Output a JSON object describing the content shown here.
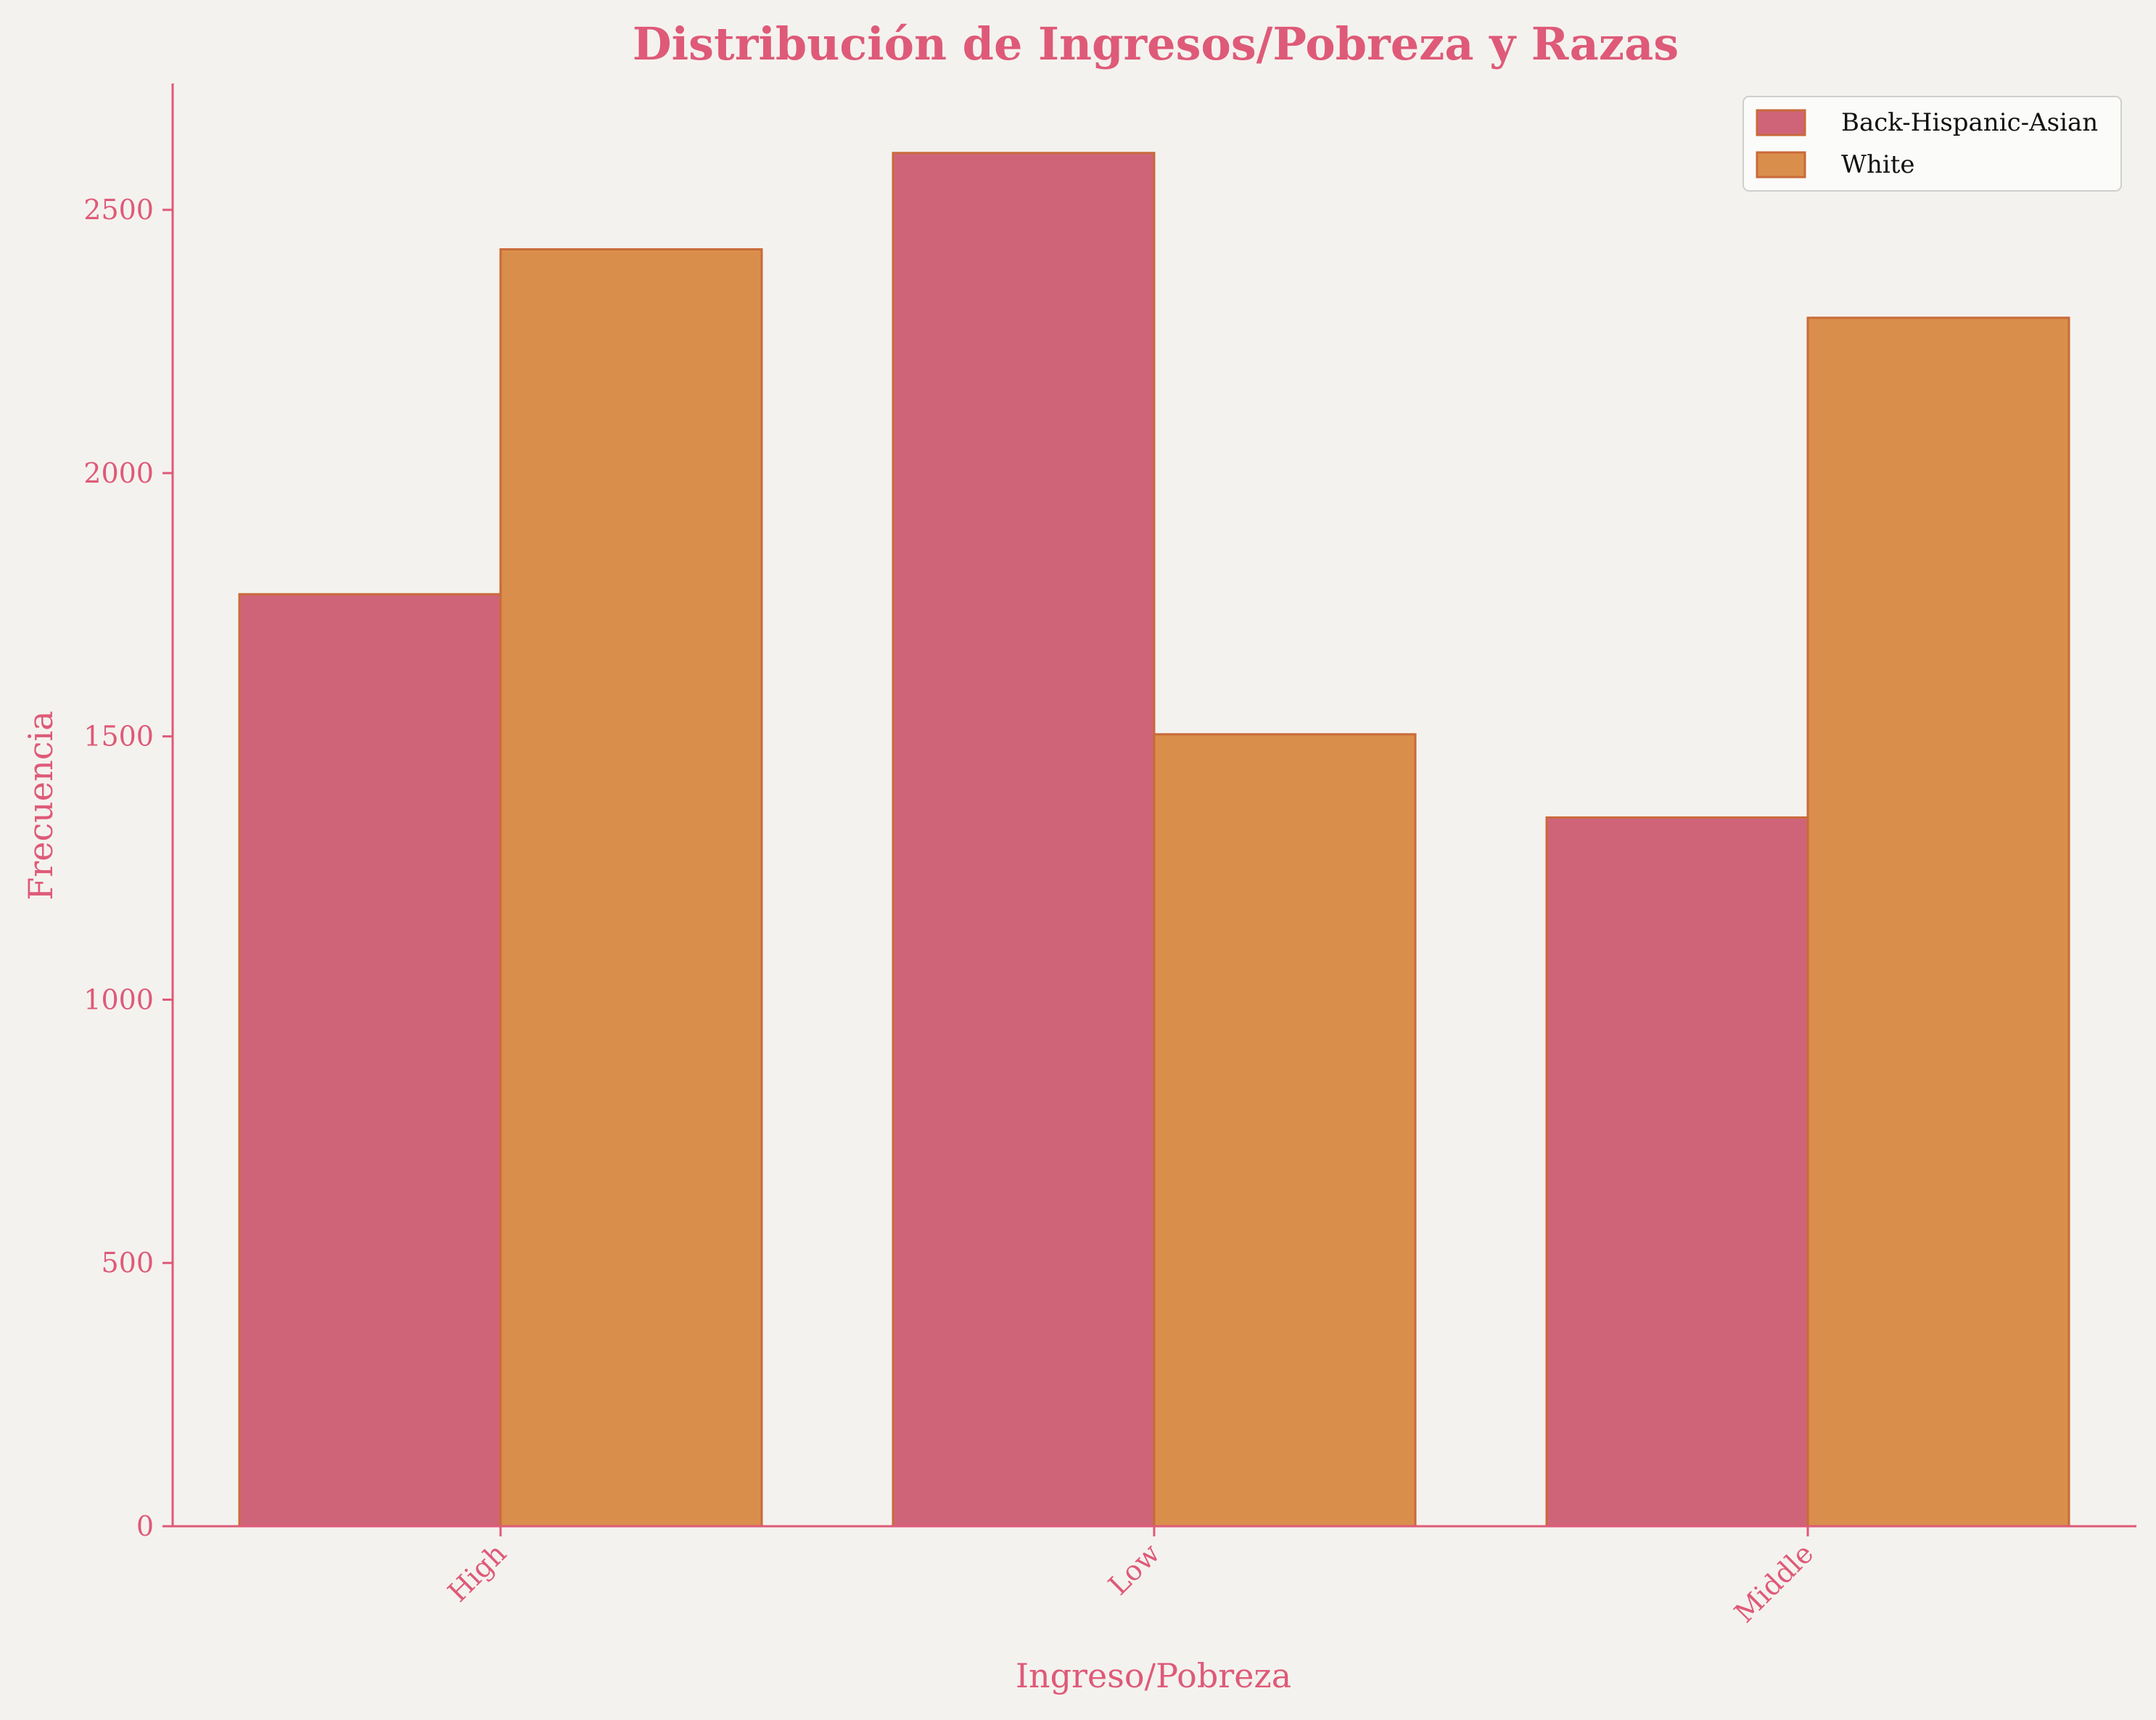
{
  "chart_data": {
    "type": "bar",
    "title": "Distribución de Ingresos/Pobreza y Razas",
    "xlabel": "Ingreso/Pobreza",
    "ylabel": "Frecuencia",
    "categories": [
      "High",
      "Low",
      "Middle"
    ],
    "series": [
      {
        "name": "Back-Hispanic-Asian",
        "values": [
          1770,
          2608,
          1346
        ],
        "color": "#cf6479"
      },
      {
        "name": "White",
        "values": [
          2425,
          1504,
          2295
        ],
        "color": "#d98f4b"
      }
    ],
    "ylim": [
      0,
      2740
    ],
    "yticks": [
      0,
      500,
      1000,
      1500,
      2000,
      2500
    ],
    "grid": false,
    "legend": "top-right",
    "colors": {
      "axis": "#de5a78",
      "edge": "#c96a3a",
      "background": "#f4f2ee"
    }
  }
}
